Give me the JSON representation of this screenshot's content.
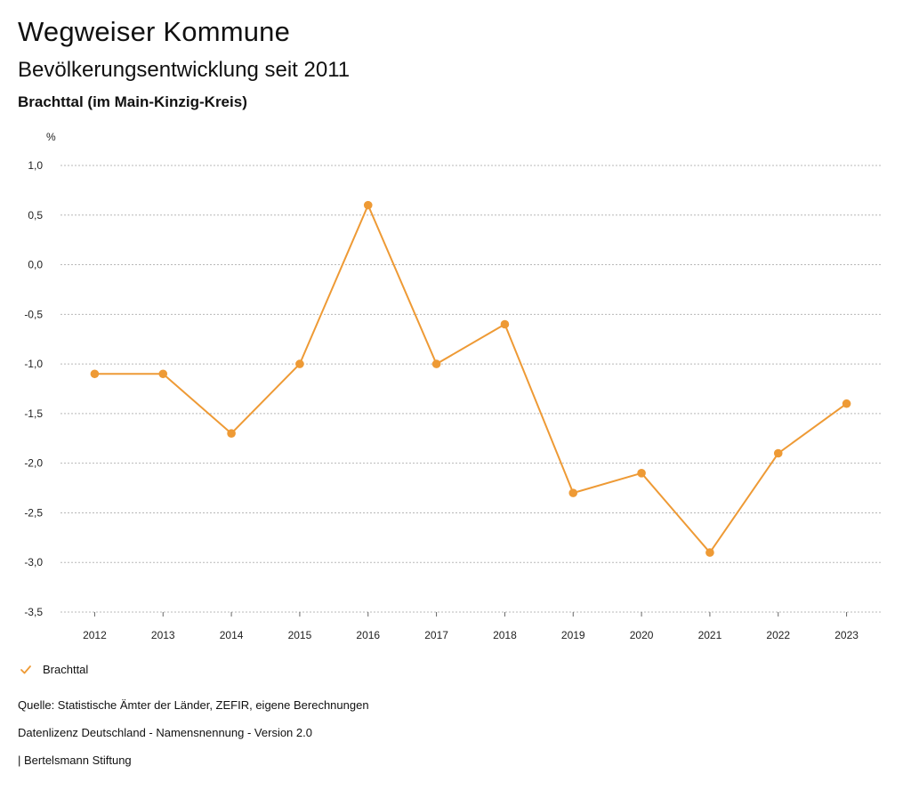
{
  "header": {
    "title": "Wegweiser Kommune",
    "subtitle": "Bevölkerungsentwicklung seit 2011",
    "region": "Brachttal (im Main-Kinzig-Kreis)"
  },
  "chart_data": {
    "type": "line",
    "title": "Bevölkerungsentwicklung seit 2011",
    "subtitle": "Brachttal (im Main-Kinzig-Kreis)",
    "ylabel": "%",
    "xlabel": "",
    "categories": [
      "2012",
      "2013",
      "2014",
      "2015",
      "2016",
      "2017",
      "2018",
      "2019",
      "2020",
      "2021",
      "2022",
      "2023"
    ],
    "series": [
      {
        "name": "Brachttal",
        "color": "#EE9A35",
        "values": [
          -1.1,
          -1.1,
          -1.7,
          -1.0,
          0.6,
          -1.0,
          -0.6,
          -2.3,
          -2.1,
          -2.9,
          -1.9,
          -1.4
        ]
      }
    ],
    "ylim": [
      -3.5,
      1.0
    ],
    "yticks": [
      1.0,
      0.5,
      0.0,
      -0.5,
      -1.0,
      -1.5,
      -2.0,
      -2.5,
      -3.0,
      -3.5
    ],
    "ytick_labels": [
      "1,0",
      "0,5",
      "0,0",
      "-0,5",
      "-1,0",
      "-1,5",
      "-2,0",
      "-2,5",
      "-3,0",
      "-3,5"
    ],
    "grid": true,
    "legend_position": "bottom-left"
  },
  "legend": {
    "label": "Brachttal",
    "icon": "check-icon",
    "color": "#EE9A35"
  },
  "footer": {
    "source": "Quelle: Statistische Ämter der Länder, ZEFIR, eigene Berechnungen",
    "license": "Datenlizenz Deutschland - Namensnennung - Version 2.0",
    "brand": "| Bertelsmann Stiftung"
  }
}
